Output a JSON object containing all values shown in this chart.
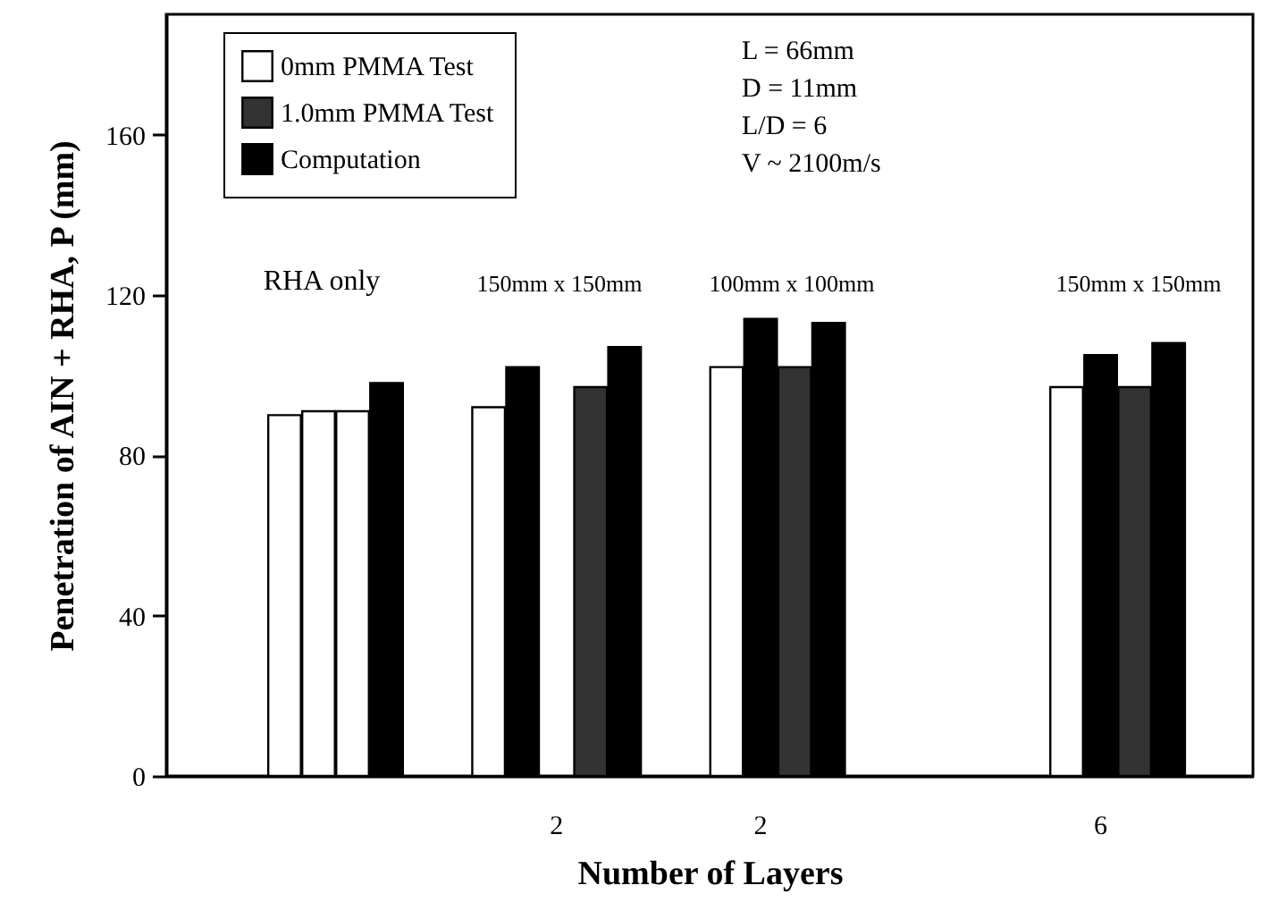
{
  "chart_data": {
    "type": "bar",
    "xlabel": "Number of Layers",
    "ylabel": "Penetration of AIN + RHA, P (mm)",
    "categories": [
      null,
      null,
      null,
      null,
      null,
      null,
      null,
      null,
      null,
      null,
      null,
      "2",
      null,
      null,
      null,
      null,
      null,
      "2",
      null,
      null,
      null,
      null,
      null,
      null,
      null,
      null,
      null,
      "6",
      null,
      null,
      null,
      null
    ],
    "series": [
      {
        "name": "0mm PMMA Test",
        "color": "#ffffff",
        "values": [
          null,
          null,
          null,
          90,
          91,
          91,
          null,
          null,
          null,
          92,
          null,
          null,
          null,
          null,
          null,
          null,
          102,
          null,
          null,
          null,
          null,
          null,
          null,
          null,
          null,
          null,
          97,
          null,
          null,
          null,
          null,
          null
        ]
      },
      {
        "name": "1.0mm PMMA Test",
        "color": "#333333",
        "values": [
          null,
          null,
          null,
          null,
          null,
          null,
          null,
          null,
          null,
          null,
          null,
          null,
          97,
          null,
          null,
          null,
          null,
          null,
          102,
          null,
          null,
          null,
          null,
          null,
          null,
          null,
          null,
          null,
          97,
          null,
          null,
          null
        ]
      },
      {
        "name": "Computation",
        "color": "#000000",
        "values": [
          null,
          null,
          null,
          null,
          null,
          null,
          98,
          null,
          null,
          null,
          102,
          null,
          null,
          107,
          null,
          null,
          null,
          114,
          null,
          113,
          null,
          null,
          null,
          null,
          null,
          null,
          null,
          105,
          null,
          108,
          null,
          null
        ]
      }
    ],
    "ylim": [
      0,
      190
    ],
    "yticks": [
      0,
      40,
      80,
      120,
      160
    ],
    "grid": false,
    "legend": "top left",
    "annotations": [
      "RHA only",
      "150mm x 150mm",
      "100mm x 100mm",
      "150mm x 150mm",
      "L = 66mm",
      "D = 11mm",
      "L/D = 6",
      "V ~ 2100m/s"
    ]
  }
}
